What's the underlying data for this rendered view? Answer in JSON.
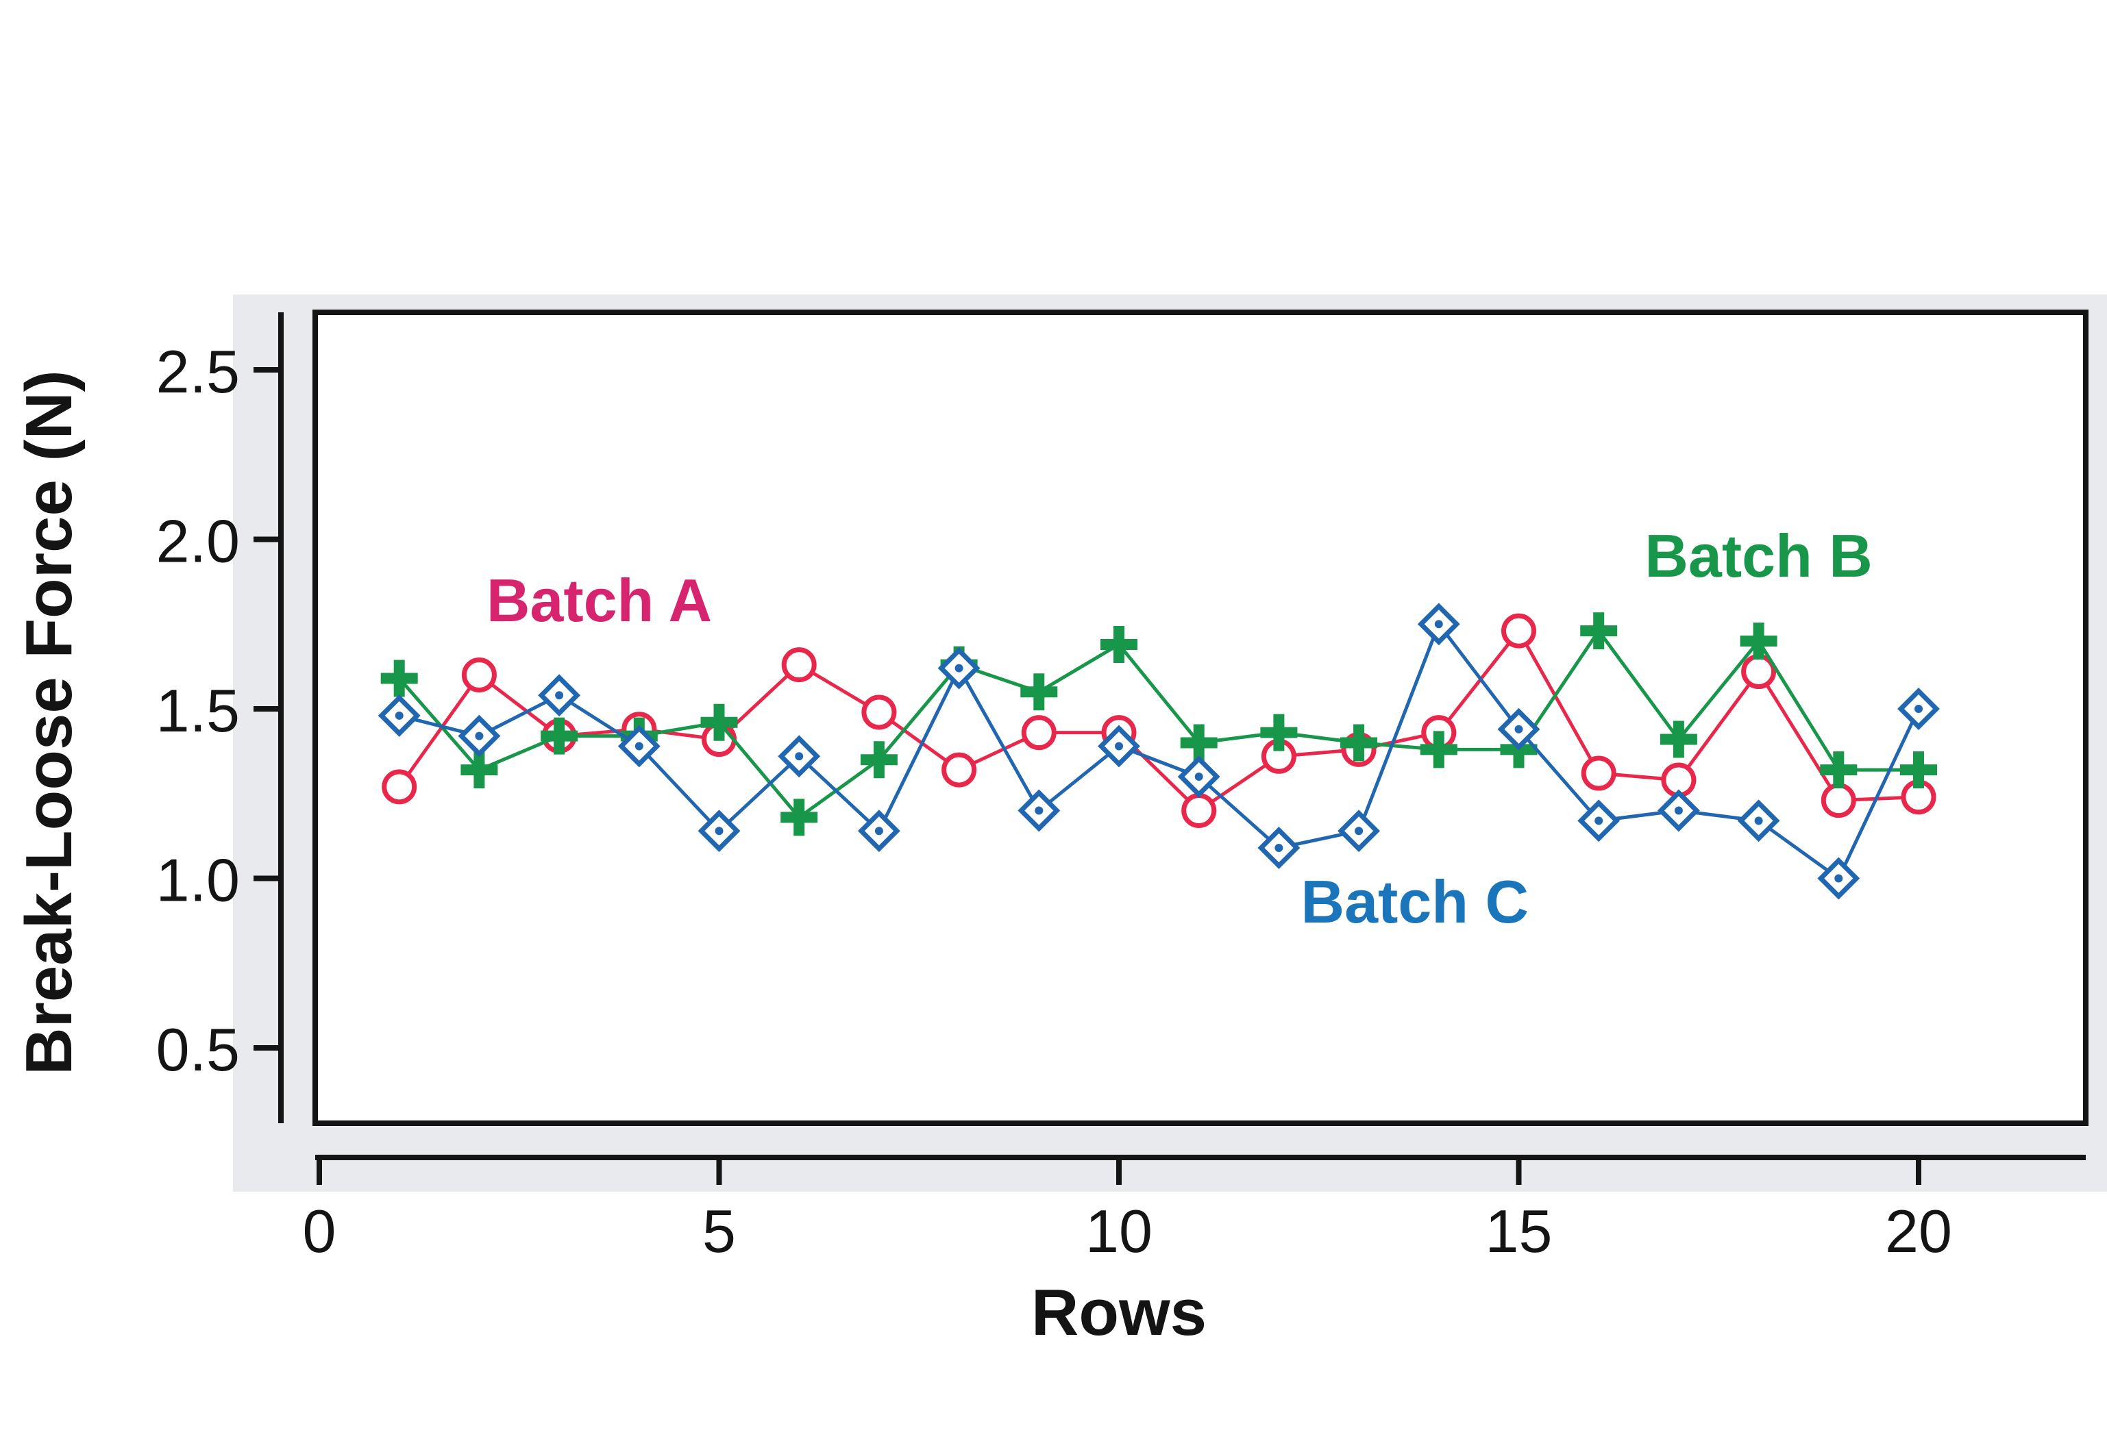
{
  "chart_data": {
    "type": "line",
    "title": "",
    "xlabel": "Rows",
    "ylabel": "Break-Loose Force (N)",
    "grid": false,
    "legend": "inline-annotations",
    "xlim": [
      0,
      22.1
    ],
    "ylim": [
      0.28,
      2.67
    ],
    "x_ticks": [
      0,
      5,
      10,
      15,
      20
    ],
    "x_tick_labels": [
      "0",
      "5",
      "10",
      "15",
      "20"
    ],
    "y_ticks": [
      0.5,
      1.0,
      1.5,
      2.0,
      2.5
    ],
    "y_tick_labels": [
      "0.5",
      "1.0",
      "1.5",
      "2.0",
      "2.5"
    ],
    "x": [
      1,
      2,
      3,
      4,
      5,
      6,
      7,
      8,
      9,
      10,
      11,
      12,
      13,
      14,
      15,
      16,
      17,
      18,
      19,
      20
    ],
    "series": [
      {
        "name": "Batch A",
        "marker": "circle",
        "color": "#e8274b",
        "values": [
          1.27,
          1.6,
          1.42,
          1.44,
          1.41,
          1.63,
          1.49,
          1.32,
          1.43,
          1.43,
          1.2,
          1.36,
          1.38,
          1.43,
          1.73,
          1.31,
          1.29,
          1.61,
          1.23,
          1.24
        ]
      },
      {
        "name": "Batch B",
        "marker": "plus",
        "color": "#18964a",
        "values": [
          1.59,
          1.32,
          1.42,
          1.42,
          1.46,
          1.18,
          1.35,
          1.63,
          1.55,
          1.69,
          1.4,
          1.43,
          1.4,
          1.38,
          1.38,
          1.73,
          1.41,
          1.7,
          1.32,
          1.32
        ]
      },
      {
        "name": "Batch C",
        "marker": "diamond",
        "color": "#2166b0",
        "values": [
          1.48,
          1.42,
          1.54,
          1.39,
          1.14,
          1.36,
          1.14,
          1.62,
          1.2,
          1.39,
          1.3,
          1.09,
          1.14,
          1.75,
          1.44,
          1.17,
          1.2,
          1.17,
          1.0,
          1.5
        ]
      }
    ],
    "annotations": [
      {
        "text": "Batch A",
        "x": 3.5,
        "y": 1.82,
        "color": "#d6246e"
      },
      {
        "text": "Batch B",
        "x": 18.0,
        "y": 1.95,
        "color": "#18964a"
      },
      {
        "text": "Batch C",
        "x": 13.7,
        "y": 0.93,
        "color": "#1b75bb"
      }
    ],
    "axis_color": "#141414",
    "plot_background": "#ffffff",
    "panel_background": "#e8eaed"
  }
}
